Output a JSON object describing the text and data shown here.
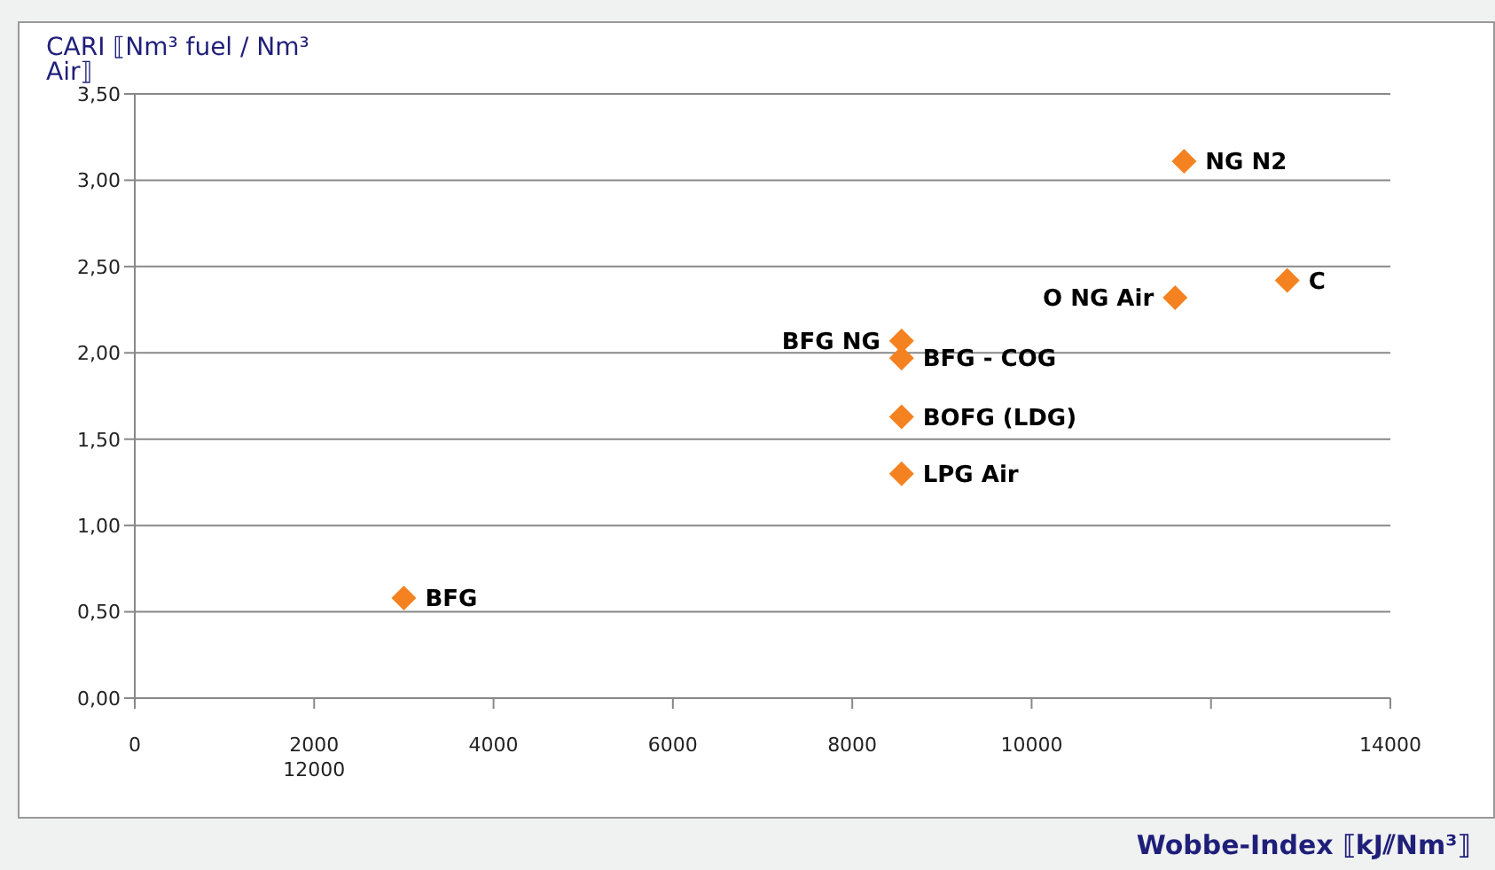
{
  "chart_data": {
    "type": "scatter",
    "ylabel": "CARI ⟦Nm³ fuel / Nm³ Air⟧",
    "xlabel": "Wobbe-Index ⟦kJ⫽Nm³⟧",
    "x": [
      3000,
      8550,
      8550,
      8550,
      8550,
      11600,
      11700,
      12850
    ],
    "values": [
      0.58,
      2.07,
      1.97,
      1.63,
      1.3,
      2.32,
      3.11,
      2.42
    ],
    "color": "#f58220",
    "marker": "diamond",
    "grid": "y",
    "xlim": [
      0,
      14000
    ],
    "xticks": [
      0,
      {
        "value": 2000,
        "label": "2000 12000"
      },
      4000,
      6000,
      8000,
      10000,
      {
        "value": 12000,
        "label": null
      },
      14000
    ],
    "ylim": [
      0,
      3.5
    ],
    "yticks": [
      {
        "value": 0,
        "label": "0,00"
      },
      {
        "value": 0.5,
        "label": "0,50"
      },
      {
        "value": 1,
        "label": "1,00"
      },
      {
        "value": 1.5,
        "label": "1,50"
      },
      {
        "value": 2,
        "label": "2,00"
      },
      {
        "value": 2.5,
        "label": "2,50"
      },
      {
        "value": 3,
        "label": "3,00"
      },
      {
        "value": 3.5,
        "label": "3,50"
      }
    ],
    "annotations": [
      {
        "text": "BFG",
        "x": 3000,
        "y": 0.58
      },
      {
        "text": "BFG NG",
        "x": 8550,
        "y": 2.07
      },
      {
        "text": "BFG - COG",
        "x": 8550,
        "y": 1.97
      },
      {
        "text": "BOFG (LDG)",
        "x": 8550,
        "y": 1.63
      },
      {
        "text": "LPG Air",
        "x": 8550,
        "y": 1.3
      },
      {
        "text": "O NG Air",
        "x": 11600,
        "y": 2.32
      },
      {
        "text": "NG N2",
        "x": 11700,
        "y": 3.11
      },
      {
        "text": "C",
        "x": 12850,
        "y": 2.42
      }
    ]
  }
}
